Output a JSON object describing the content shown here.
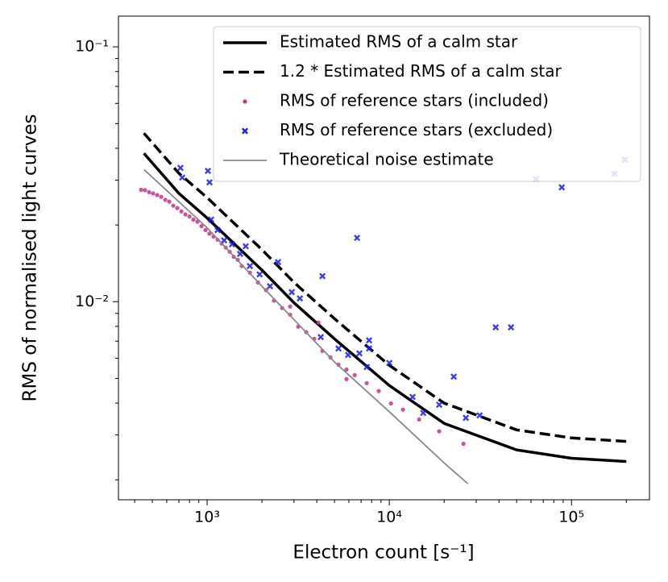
{
  "chart_data": {
    "type": "scatter",
    "xlabel": "Electron count [s⁻¹]",
    "ylabel": "RMS of normalised light curves",
    "xscale": "log",
    "yscale": "log",
    "xlim": [
      326,
      268000
    ],
    "ylim": [
      0.00167,
      0.132
    ],
    "xticks": [
      {
        "value": 1000,
        "label": "10³"
      },
      {
        "value": 10000,
        "label": "10⁴"
      },
      {
        "value": 100000,
        "label": "10⁵"
      }
    ],
    "yticks": [
      {
        "value": 0.01,
        "label": "10⁻²"
      },
      {
        "value": 0.1,
        "label": "10⁻¹"
      }
    ],
    "xminorticks": [
      400,
      500,
      600,
      700,
      800,
      900,
      2000,
      3000,
      4000,
      5000,
      6000,
      7000,
      8000,
      9000,
      20000,
      30000,
      40000,
      50000,
      60000,
      70000,
      80000,
      90000,
      200000
    ],
    "yminorticks": [
      0.002,
      0.003,
      0.004,
      0.005,
      0.006,
      0.007,
      0.008,
      0.009,
      0.02,
      0.03,
      0.04,
      0.05,
      0.06,
      0.07,
      0.08,
      0.09
    ],
    "grid": false,
    "legend": "upper right",
    "series": [
      {
        "name": "Estimated RMS of a calm star",
        "color": "#000000",
        "style": "solid",
        "x": [
          450,
          700,
          1000,
          2000,
          3000,
          5000,
          10000,
          20000,
          50000,
          100000,
          200000
        ],
        "values": [
          0.0382,
          0.0266,
          0.0213,
          0.0133,
          0.0099,
          0.00715,
          0.00469,
          0.00333,
          0.00262,
          0.00243,
          0.00236
        ]
      },
      {
        "name": "1.2 * Estimated RMS of a calm star",
        "color": "#000000",
        "style": "dashed",
        "x": [
          450,
          700,
          1000,
          2000,
          3000,
          5000,
          10000,
          20000,
          50000,
          100000,
          200000
        ],
        "values": [
          0.0458,
          0.0319,
          0.0256,
          0.016,
          0.0119,
          0.00858,
          0.00563,
          0.004,
          0.00314,
          0.00292,
          0.00283
        ]
      },
      {
        "name": "RMS of reference stars (included)",
        "color": "#c8318f",
        "style": "dot",
        "x": [
          434,
          456,
          480,
          505,
          532,
          560,
          589,
          620,
          652,
          686,
          722,
          760,
          800,
          841,
          885,
          931,
          980,
          1030,
          1084,
          1142,
          1202,
          1265,
          1330,
          1400,
          1473,
          1549,
          1717,
          1901,
          2104,
          2330,
          2582,
          2856,
          3162,
          3500,
          3873,
          4295,
          4750,
          5260,
          5821,
          6457,
          7516,
          8750,
          10210,
          11890,
          14580,
          18790,
          25530,
          4083,
          2856,
          5821
        ],
        "values": [
          0.0275,
          0.0274,
          0.0269,
          0.0266,
          0.0262,
          0.0258,
          0.0251,
          0.0247,
          0.0238,
          0.0233,
          0.0226,
          0.022,
          0.0216,
          0.021,
          0.0206,
          0.0198,
          0.0191,
          0.0185,
          0.018,
          0.0175,
          0.0169,
          0.0163,
          0.0157,
          0.015,
          0.0146,
          0.0138,
          0.013,
          0.0119,
          0.0111,
          0.0101,
          0.00944,
          0.00889,
          0.00798,
          0.00759,
          0.00715,
          0.00641,
          0.00605,
          0.00566,
          0.00542,
          0.00515,
          0.00479,
          0.00446,
          0.00399,
          0.00377,
          0.00345,
          0.0031,
          0.00277,
          0.00828,
          0.00957,
          0.00497
        ]
      },
      {
        "name": "RMS of reference stars (excluded)",
        "color": "#1a1aee",
        "style": "cross",
        "x": [
          714,
          730,
          1010,
          1031,
          1052,
          1142,
          1239,
          1371,
          1517,
          1717,
          1941,
          2451,
          2213,
          2917,
          3230,
          4295,
          6653,
          4207,
          5263,
          5945,
          6855,
          7745,
          7745,
          7516,
          10000,
          13430,
          18790,
          22590,
          26320,
          31320,
          38370,
          46560,
          63830,
          88450,
          171800,
          196000,
          15350,
          1629
        ],
        "values": [
          0.0335,
          0.0307,
          0.0326,
          0.0294,
          0.021,
          0.0191,
          0.0174,
          0.0168,
          0.0154,
          0.0138,
          0.0128,
          0.0143,
          0.0115,
          0.0109,
          0.0103,
          0.0126,
          0.0178,
          0.00726,
          0.00655,
          0.00618,
          0.00627,
          0.00705,
          0.00655,
          0.00554,
          0.00575,
          0.00423,
          0.00394,
          0.00508,
          0.0035,
          0.00358,
          0.00793,
          0.00793,
          0.0303,
          0.0281,
          0.0318,
          0.0361,
          0.00366,
          0.0165
        ]
      },
      {
        "name": "Theoretical noise estimate",
        "color": "#888888",
        "style": "thin",
        "x": [
          450,
          1000,
          2000,
          5000,
          10000,
          20000,
          27000
        ],
        "values": [
          0.033,
          0.0195,
          0.0115,
          0.0058,
          0.0037,
          0.00233,
          0.00193
        ]
      }
    ]
  }
}
